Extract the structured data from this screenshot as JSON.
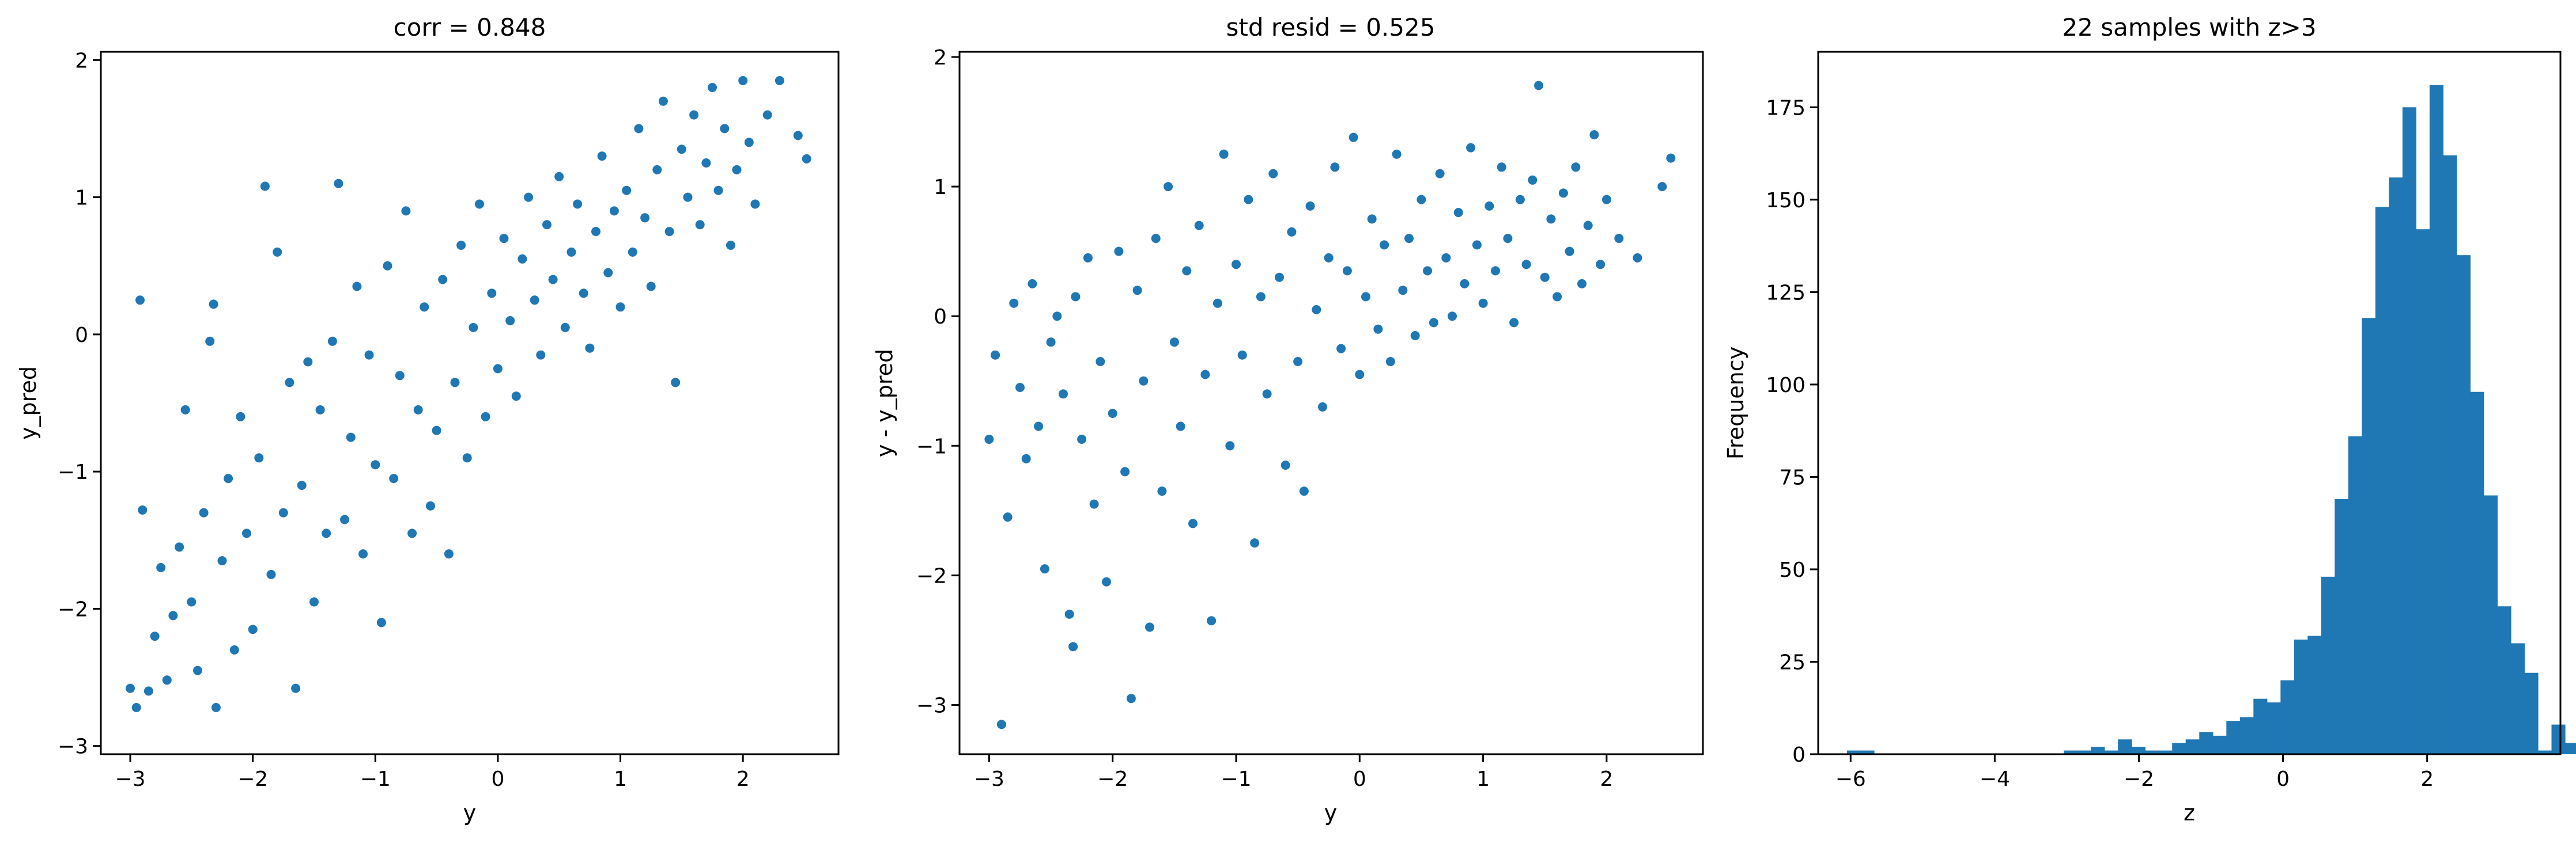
{
  "chart_data": [
    {
      "type": "scatter",
      "title": "corr = 0.848",
      "xlabel": "y",
      "ylabel": "y_pred",
      "xlim": [
        -3.24,
        2.78
      ],
      "ylim": [
        -3.06,
        2.06
      ],
      "xticks": [
        -3,
        -2,
        -1,
        0,
        1,
        2
      ],
      "yticks": [
        -3,
        -2,
        -1,
        0,
        1,
        2
      ],
      "xtick_labels": [
        "−3",
        "−2",
        "−1",
        "0",
        "1",
        "2"
      ],
      "ytick_labels": [
        "−3",
        "−2",
        "−1",
        "0",
        "1",
        "2"
      ],
      "grid": false,
      "color": "#1f77b4",
      "points": [
        [
          -3.0,
          -2.58
        ],
        [
          -2.95,
          -2.72
        ],
        [
          -2.92,
          0.25
        ],
        [
          -2.9,
          -1.28
        ],
        [
          -2.85,
          -2.6
        ],
        [
          -2.8,
          -2.2
        ],
        [
          -2.75,
          -1.7
        ],
        [
          -2.7,
          -2.52
        ],
        [
          -2.65,
          -2.05
        ],
        [
          -2.6,
          -1.55
        ],
        [
          -2.55,
          -0.55
        ],
        [
          -2.5,
          -1.95
        ],
        [
          -2.45,
          -2.45
        ],
        [
          -2.4,
          -1.3
        ],
        [
          -2.35,
          -0.05
        ],
        [
          -2.32,
          0.22
        ],
        [
          -2.3,
          -2.72
        ],
        [
          -2.25,
          -1.65
        ],
        [
          -2.2,
          -1.05
        ],
        [
          -2.15,
          -2.3
        ],
        [
          -2.1,
          -0.6
        ],
        [
          -2.05,
          -1.45
        ],
        [
          -2.0,
          -2.15
        ],
        [
          -1.95,
          -0.9
        ],
        [
          -1.9,
          1.08
        ],
        [
          -1.85,
          -1.75
        ],
        [
          -1.8,
          0.6
        ],
        [
          -1.75,
          -1.3
        ],
        [
          -1.7,
          -0.35
        ],
        [
          -1.65,
          -2.58
        ],
        [
          -1.6,
          -1.1
        ],
        [
          -1.55,
          -0.2
        ],
        [
          -1.5,
          -1.95
        ],
        [
          -1.45,
          -0.55
        ],
        [
          -1.4,
          -1.45
        ],
        [
          -1.35,
          -0.05
        ],
        [
          -1.3,
          1.1
        ],
        [
          -1.25,
          -1.35
        ],
        [
          -1.2,
          -0.75
        ],
        [
          -1.15,
          0.35
        ],
        [
          -1.1,
          -1.6
        ],
        [
          -1.05,
          -0.15
        ],
        [
          -1.0,
          -0.95
        ],
        [
          -0.95,
          -2.1
        ],
        [
          -0.9,
          0.5
        ],
        [
          -0.85,
          -1.05
        ],
        [
          -0.8,
          -0.3
        ],
        [
          -0.75,
          0.9
        ],
        [
          -0.7,
          -1.45
        ],
        [
          -0.65,
          -0.55
        ],
        [
          -0.6,
          0.2
        ],
        [
          -0.55,
          -1.25
        ],
        [
          -0.5,
          -0.7
        ],
        [
          -0.45,
          0.4
        ],
        [
          -0.4,
          -1.6
        ],
        [
          -0.35,
          -0.35
        ],
        [
          -0.3,
          0.65
        ],
        [
          -0.25,
          -0.9
        ],
        [
          -0.2,
          0.05
        ],
        [
          -0.15,
          0.95
        ],
        [
          -0.1,
          -0.6
        ],
        [
          -0.05,
          0.3
        ],
        [
          0.0,
          -0.25
        ],
        [
          0.05,
          0.7
        ],
        [
          0.1,
          0.1
        ],
        [
          0.15,
          -0.45
        ],
        [
          0.2,
          0.55
        ],
        [
          0.25,
          1.0
        ],
        [
          0.3,
          0.25
        ],
        [
          0.35,
          -0.15
        ],
        [
          0.4,
          0.8
        ],
        [
          0.45,
          0.4
        ],
        [
          0.5,
          1.15
        ],
        [
          0.55,
          0.05
        ],
        [
          0.6,
          0.6
        ],
        [
          0.65,
          0.95
        ],
        [
          0.7,
          0.3
        ],
        [
          0.75,
          -0.1
        ],
        [
          0.8,
          0.75
        ],
        [
          0.85,
          1.3
        ],
        [
          0.9,
          0.45
        ],
        [
          0.95,
          0.9
        ],
        [
          1.0,
          0.2
        ],
        [
          1.05,
          1.05
        ],
        [
          1.1,
          0.6
        ],
        [
          1.15,
          1.5
        ],
        [
          1.2,
          0.85
        ],
        [
          1.25,
          0.35
        ],
        [
          1.3,
          1.2
        ],
        [
          1.35,
          1.7
        ],
        [
          1.4,
          0.75
        ],
        [
          1.45,
          -0.35
        ],
        [
          1.5,
          1.35
        ],
        [
          1.55,
          1.0
        ],
        [
          1.6,
          1.6
        ],
        [
          1.65,
          0.8
        ],
        [
          1.7,
          1.25
        ],
        [
          1.75,
          1.8
        ],
        [
          1.8,
          1.05
        ],
        [
          1.85,
          1.5
        ],
        [
          1.9,
          0.65
        ],
        [
          1.95,
          1.2
        ],
        [
          2.0,
          1.85
        ],
        [
          2.05,
          1.4
        ],
        [
          2.1,
          0.95
        ],
        [
          2.2,
          1.6
        ],
        [
          2.3,
          1.85
        ],
        [
          2.45,
          1.45
        ],
        [
          2.52,
          1.28
        ]
      ]
    },
    {
      "type": "scatter",
      "title": "std resid = 0.525",
      "xlabel": "y",
      "ylabel": "y - y_pred",
      "xlim": [
        -3.24,
        2.78
      ],
      "ylim": [
        -3.38,
        2.04
      ],
      "xticks": [
        -3,
        -2,
        -1,
        0,
        1,
        2
      ],
      "yticks": [
        -3,
        -2,
        -1,
        0,
        1,
        2
      ],
      "xtick_labels": [
        "−3",
        "−2",
        "−1",
        "0",
        "1",
        "2"
      ],
      "ytick_labels": [
        "−3",
        "−2",
        "−1",
        "0",
        "1",
        "2"
      ],
      "grid": false,
      "color": "#1f77b4",
      "points": [
        [
          -3.0,
          -0.95
        ],
        [
          -2.95,
          -0.3
        ],
        [
          -2.9,
          -3.15
        ],
        [
          -2.85,
          -1.55
        ],
        [
          -2.8,
          0.1
        ],
        [
          -2.75,
          -0.55
        ],
        [
          -2.7,
          -1.1
        ],
        [
          -2.65,
          0.25
        ],
        [
          -2.6,
          -0.85
        ],
        [
          -2.55,
          -1.95
        ],
        [
          -2.5,
          -0.2
        ],
        [
          -2.45,
          0.0
        ],
        [
          -2.4,
          -0.6
        ],
        [
          -2.35,
          -2.3
        ],
        [
          -2.32,
          -2.55
        ],
        [
          -2.3,
          0.15
        ],
        [
          -2.25,
          -0.95
        ],
        [
          -2.2,
          0.45
        ],
        [
          -2.15,
          -1.45
        ],
        [
          -2.1,
          -0.35
        ],
        [
          -2.05,
          -2.05
        ],
        [
          -2.0,
          -0.75
        ],
        [
          -1.95,
          0.5
        ],
        [
          -1.9,
          -1.2
        ],
        [
          -1.85,
          -2.95
        ],
        [
          -1.8,
          0.2
        ],
        [
          -1.75,
          -0.5
        ],
        [
          -1.7,
          -2.4
        ],
        [
          -1.65,
          0.6
        ],
        [
          -1.6,
          -1.35
        ],
        [
          -1.55,
          1.0
        ],
        [
          -1.5,
          -0.2
        ],
        [
          -1.45,
          -0.85
        ],
        [
          -1.4,
          0.35
        ],
        [
          -1.35,
          -1.6
        ],
        [
          -1.3,
          0.7
        ],
        [
          -1.25,
          -0.45
        ],
        [
          -1.2,
          -2.35
        ],
        [
          -1.15,
          0.1
        ],
        [
          -1.1,
          1.25
        ],
        [
          -1.05,
          -1.0
        ],
        [
          -1.0,
          0.4
        ],
        [
          -0.95,
          -0.3
        ],
        [
          -0.9,
          0.9
        ],
        [
          -0.85,
          -1.75
        ],
        [
          -0.8,
          0.15
        ],
        [
          -0.75,
          -0.6
        ],
        [
          -0.7,
          1.1
        ],
        [
          -0.65,
          0.3
        ],
        [
          -0.6,
          -1.15
        ],
        [
          -0.55,
          0.65
        ],
        [
          -0.5,
          -0.35
        ],
        [
          -0.45,
          -1.35
        ],
        [
          -0.4,
          0.85
        ],
        [
          -0.35,
          0.05
        ],
        [
          -0.3,
          -0.7
        ],
        [
          -0.25,
          0.45
        ],
        [
          -0.2,
          1.15
        ],
        [
          -0.15,
          -0.25
        ],
        [
          -0.1,
          0.35
        ],
        [
          -0.05,
          1.38
        ],
        [
          0.0,
          -0.45
        ],
        [
          0.05,
          0.15
        ],
        [
          0.1,
          0.75
        ],
        [
          0.15,
          -0.1
        ],
        [
          0.2,
          0.55
        ],
        [
          0.25,
          -0.35
        ],
        [
          0.3,
          1.25
        ],
        [
          0.35,
          0.2
        ],
        [
          0.4,
          0.6
        ],
        [
          0.45,
          -0.15
        ],
        [
          0.5,
          0.9
        ],
        [
          0.55,
          0.35
        ],
        [
          0.6,
          -0.05
        ],
        [
          0.65,
          1.1
        ],
        [
          0.7,
          0.45
        ],
        [
          0.75,
          0.0
        ],
        [
          0.8,
          0.8
        ],
        [
          0.85,
          0.25
        ],
        [
          0.9,
          1.3
        ],
        [
          0.95,
          0.55
        ],
        [
          1.0,
          0.1
        ],
        [
          1.05,
          0.85
        ],
        [
          1.1,
          0.35
        ],
        [
          1.15,
          1.15
        ],
        [
          1.2,
          0.6
        ],
        [
          1.25,
          -0.05
        ],
        [
          1.3,
          0.9
        ],
        [
          1.35,
          0.4
        ],
        [
          1.4,
          1.05
        ],
        [
          1.45,
          1.78
        ],
        [
          1.5,
          0.3
        ],
        [
          1.55,
          0.75
        ],
        [
          1.6,
          0.15
        ],
        [
          1.65,
          0.95
        ],
        [
          1.7,
          0.5
        ],
        [
          1.75,
          1.15
        ],
        [
          1.8,
          0.25
        ],
        [
          1.85,
          0.7
        ],
        [
          1.9,
          1.4
        ],
        [
          1.95,
          0.4
        ],
        [
          2.0,
          0.9
        ],
        [
          2.1,
          0.6
        ],
        [
          2.25,
          0.45
        ],
        [
          2.45,
          1.0
        ],
        [
          2.52,
          1.22
        ]
      ]
    },
    {
      "type": "bar",
      "title": "22 samples with z>3",
      "xlabel": "z",
      "ylabel": "Frequency",
      "xlim": [
        -6.45,
        3.85
      ],
      "ylim": [
        0,
        190
      ],
      "xticks": [
        -6,
        -4,
        -2,
        0,
        2
      ],
      "yticks": [
        0,
        25,
        50,
        75,
        100,
        125,
        150,
        175
      ],
      "xtick_labels": [
        "−6",
        "−4",
        "−2",
        "0",
        "2"
      ],
      "ytick_labels": [
        "0",
        "25",
        "50",
        "75",
        "100",
        "125",
        "150",
        "175"
      ],
      "grid": false,
      "color": "#1f77b4",
      "bin_start": -6.05,
      "bin_width": 0.188,
      "values": [
        1,
        1,
        0,
        0,
        0,
        0,
        0,
        0,
        0,
        0,
        0,
        0,
        0,
        0,
        0,
        0,
        1,
        1,
        2,
        1,
        4,
        2,
        1,
        1,
        3,
        4,
        6,
        5,
        9,
        10,
        15,
        14,
        20,
        31,
        32,
        48,
        69,
        86,
        118,
        148,
        156,
        175,
        142,
        181,
        162,
        135,
        98,
        70,
        40,
        30,
        22,
        1,
        8,
        3,
        1,
        0,
        0,
        0,
        0,
        1
      ]
    }
  ]
}
